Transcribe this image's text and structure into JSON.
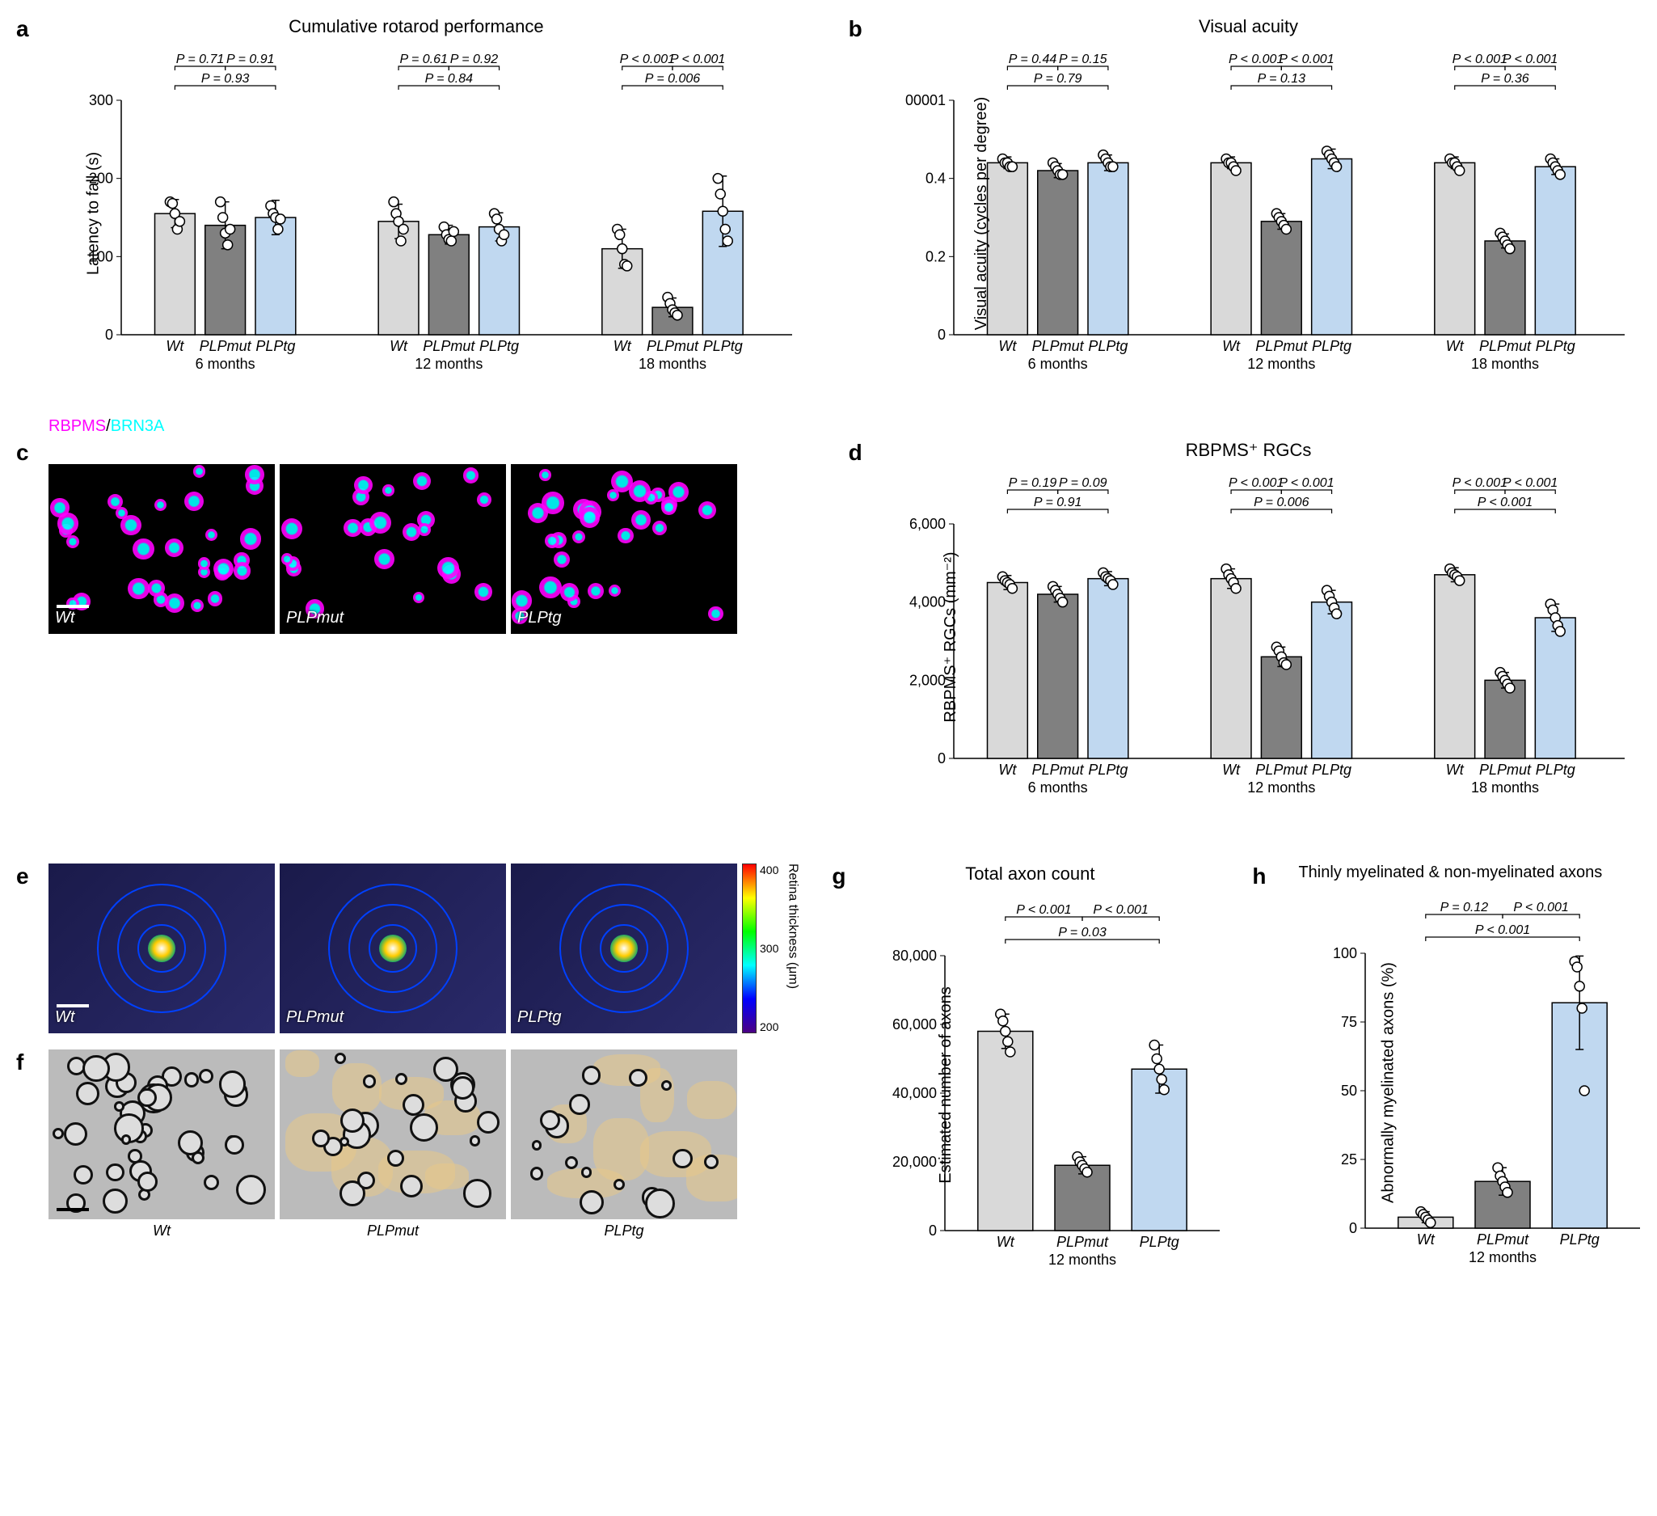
{
  "colors": {
    "wt": "#d9d9d9",
    "plpmut": "#808080",
    "plptg": "#c0d8f0",
    "axis": "#000000",
    "point_fill": "#ffffff",
    "point_stroke": "#000000"
  },
  "groups": [
    "Wt",
    "PLPmut",
    "PLPtg"
  ],
  "timepoints": [
    "6 months",
    "12 months",
    "18 months"
  ],
  "panel_a": {
    "label": "a",
    "title": "Cumulative rotarod performance",
    "ylabel": "Latency to fall (s)",
    "ylim": [
      0,
      300
    ],
    "ytick_step": 100,
    "data": {
      "6 months": {
        "means": [
          155,
          140,
          150
        ],
        "err": [
          18,
          30,
          22
        ],
        "points": [
          [
            170,
            168,
            155,
            135,
            145
          ],
          [
            170,
            150,
            130,
            115,
            135
          ],
          [
            165,
            155,
            150,
            135,
            148
          ]
        ],
        "pvals": [
          "P = 0.71",
          "P = 0.91",
          "P = 0.93"
        ]
      },
      "12 months": {
        "means": [
          145,
          128,
          138
        ],
        "err": [
          22,
          12,
          18
        ],
        "points": [
          [
            170,
            155,
            145,
            120,
            135
          ],
          [
            138,
            128,
            122,
            120,
            132
          ],
          [
            155,
            148,
            135,
            120,
            128
          ]
        ],
        "pvals": [
          "P = 0.61",
          "P = 0.92",
          "P = 0.84"
        ]
      },
      "18 months": {
        "means": [
          110,
          35,
          158
        ],
        "err": [
          25,
          12,
          45
        ],
        "points": [
          [
            135,
            128,
            110,
            90,
            88
          ],
          [
            48,
            40,
            32,
            28,
            25
          ],
          [
            200,
            180,
            158,
            135,
            120
          ]
        ],
        "pvals": [
          "P < 0.001",
          "P < 0.001",
          "P = 0.006"
        ]
      }
    }
  },
  "panel_b": {
    "label": "b",
    "title": "Visual acuity",
    "ylabel": "Visual acuity (cycles per degree)",
    "ylim": [
      0,
      0.6
    ],
    "ytick_step": 0.2,
    "data": {
      "6 months": {
        "means": [
          0.44,
          0.42,
          0.44
        ],
        "err": [
          0.015,
          0.018,
          0.02
        ],
        "points": [
          [
            0.45,
            0.44,
            0.44,
            0.43,
            0.43
          ],
          [
            0.44,
            0.43,
            0.42,
            0.41,
            0.41
          ],
          [
            0.46,
            0.45,
            0.44,
            0.43,
            0.43
          ]
        ],
        "pvals": [
          "P = 0.44",
          "P = 0.15",
          "P = 0.79"
        ]
      },
      "12 months": {
        "means": [
          0.44,
          0.29,
          0.45
        ],
        "err": [
          0.015,
          0.02,
          0.025
        ],
        "points": [
          [
            0.45,
            0.44,
            0.44,
            0.43,
            0.42
          ],
          [
            0.31,
            0.3,
            0.29,
            0.28,
            0.27
          ],
          [
            0.47,
            0.46,
            0.45,
            0.44,
            0.43
          ]
        ],
        "pvals": [
          "P < 0.001",
          "P < 0.001",
          "P = 0.13"
        ]
      },
      "18 months": {
        "means": [
          0.44,
          0.24,
          0.43
        ],
        "err": [
          0.015,
          0.018,
          0.02
        ],
        "points": [
          [
            0.45,
            0.44,
            0.44,
            0.43,
            0.42
          ],
          [
            0.26,
            0.25,
            0.24,
            0.23,
            0.22
          ],
          [
            0.45,
            0.44,
            0.43,
            0.42,
            0.41
          ]
        ],
        "pvals": [
          "P < 0.001",
          "P < 0.001",
          "P = 0.36"
        ]
      }
    }
  },
  "panel_c": {
    "label": "c",
    "title_html": "RBPMS/BRN3A",
    "rbpms_color": "#ff00ff",
    "brn3a_color": "#00ffff",
    "images": [
      "Wt",
      "PLPmut",
      "PLPtg"
    ]
  },
  "panel_d": {
    "label": "d",
    "title": "RBPMS⁺ RGCs",
    "ylabel": "RBPMS⁺ RGCs (mm⁻²)",
    "ylim": [
      0,
      6000
    ],
    "ytick_step": 2000,
    "data": {
      "6 months": {
        "means": [
          4500,
          4200,
          4600
        ],
        "err": [
          180,
          200,
          180
        ],
        "points": [
          [
            4650,
            4550,
            4500,
            4450,
            4350
          ],
          [
            4400,
            4300,
            4200,
            4100,
            4000
          ],
          [
            4750,
            4650,
            4600,
            4550,
            4450
          ]
        ],
        "pvals": [
          "P = 0.19",
          "P = 0.09",
          "P = 0.91"
        ]
      },
      "12 months": {
        "means": [
          4600,
          2600,
          4000
        ],
        "err": [
          250,
          250,
          300
        ],
        "points": [
          [
            4850,
            4700,
            4600,
            4500,
            4350
          ],
          [
            2850,
            2750,
            2600,
            2450,
            2400
          ],
          [
            4300,
            4150,
            4000,
            3850,
            3700
          ]
        ],
        "pvals": [
          "P < 0.001",
          "P < 0.001",
          "P = 0.006"
        ]
      },
      "18 months": {
        "means": [
          4700,
          2000,
          3600
        ],
        "err": [
          180,
          200,
          350
        ],
        "points": [
          [
            4850,
            4750,
            4700,
            4650,
            4550
          ],
          [
            2200,
            2100,
            2000,
            1900,
            1800
          ],
          [
            3950,
            3800,
            3600,
            3400,
            3250
          ]
        ],
        "pvals": [
          "P < 0.001",
          "P < 0.001",
          "P < 0.001"
        ]
      }
    }
  },
  "panel_e": {
    "label": "e",
    "images": [
      "Wt",
      "PLPmut",
      "PLPtg"
    ],
    "colorbar_label": "Retina thickness (μm)",
    "colorbar_ticks": [
      "400",
      "300",
      "200"
    ]
  },
  "panel_f": {
    "label": "f",
    "images": [
      "Wt",
      "PLPmut",
      "PLPtg"
    ]
  },
  "panel_g": {
    "label": "g",
    "title": "Total axon count",
    "ylabel": "Estimated number of axons",
    "ylim": [
      0,
      80000
    ],
    "ytick_step": 20000,
    "timepoint": "12 months",
    "means": [
      58000,
      19000,
      47000
    ],
    "err": [
      5000,
      2500,
      7000
    ],
    "points": [
      [
        63000,
        61000,
        58000,
        55000,
        52000
      ],
      [
        21500,
        20000,
        19000,
        18000,
        17000
      ],
      [
        54000,
        50000,
        47000,
        44000,
        41000
      ]
    ],
    "pvals": [
      "P < 0.001",
      "P < 0.001",
      "P = 0.03"
    ]
  },
  "panel_h": {
    "label": "h",
    "title": "Thinly myelinated & non-myelinated axons",
    "ylabel": "Abnormally myelinated axons (%)",
    "ylim": [
      0,
      100
    ],
    "ytick_step": 25,
    "timepoint": "12 months",
    "means": [
      4,
      17,
      82
    ],
    "err": [
      2,
      5,
      17
    ],
    "points": [
      [
        6,
        5,
        4,
        3,
        2
      ],
      [
        22,
        19,
        17,
        15,
        13
      ],
      [
        97,
        95,
        88,
        80,
        50
      ]
    ],
    "pvals": [
      "P = 0.12",
      "P < 0.001",
      "P < 0.001"
    ]
  }
}
